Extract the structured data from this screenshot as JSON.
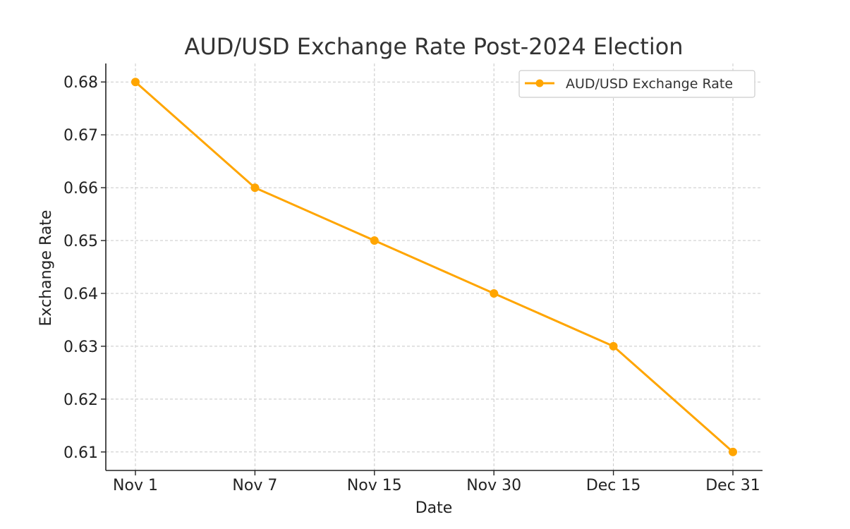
{
  "chart_data": {
    "type": "line",
    "title": "AUD/USD Exchange Rate Post-2024 Election",
    "xlabel": "Date",
    "ylabel": "Exchange Rate",
    "categories": [
      "Nov 1",
      "Nov 7",
      "Nov 15",
      "Nov 30",
      "Dec 15",
      "Dec 31"
    ],
    "series": [
      {
        "name": "AUD/USD Exchange Rate",
        "values": [
          0.68,
          0.66,
          0.65,
          0.64,
          0.63,
          0.61
        ],
        "color": "#ffa500"
      }
    ],
    "yticks": [
      "0.61",
      "0.62",
      "0.63",
      "0.64",
      "0.65",
      "0.66",
      "0.67",
      "0.68"
    ],
    "ylim": [
      0.6065,
      0.6835
    ],
    "grid": true,
    "legend_position": "top-right"
  }
}
